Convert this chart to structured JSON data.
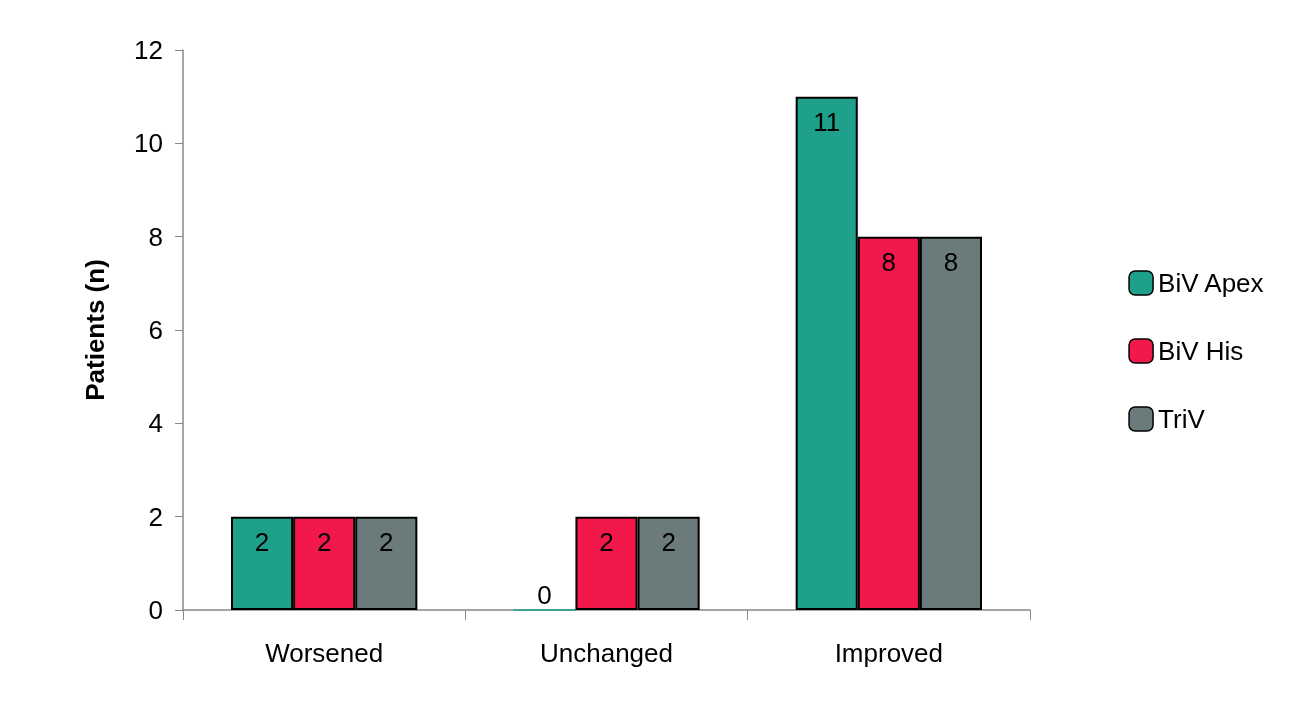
{
  "chart_data": {
    "type": "bar",
    "ylabel": "Patients (n)",
    "categories": [
      "Worsened",
      "Unchanged",
      "Improved"
    ],
    "series": [
      {
        "name": "BiV Apex",
        "color": "#1fa08a",
        "values": [
          2,
          0,
          11
        ]
      },
      {
        "name": "BiV His",
        "color": "#f2184c",
        "values": [
          2,
          2,
          8
        ]
      },
      {
        "name": "TriV",
        "color": "#6b7a7a",
        "values": [
          2,
          2,
          8
        ]
      }
    ],
    "ylim": [
      0,
      12
    ],
    "yticks": [
      0,
      2,
      4,
      6,
      8,
      10,
      12
    ],
    "grid": false,
    "legend": "right",
    "data_labels": true
  }
}
